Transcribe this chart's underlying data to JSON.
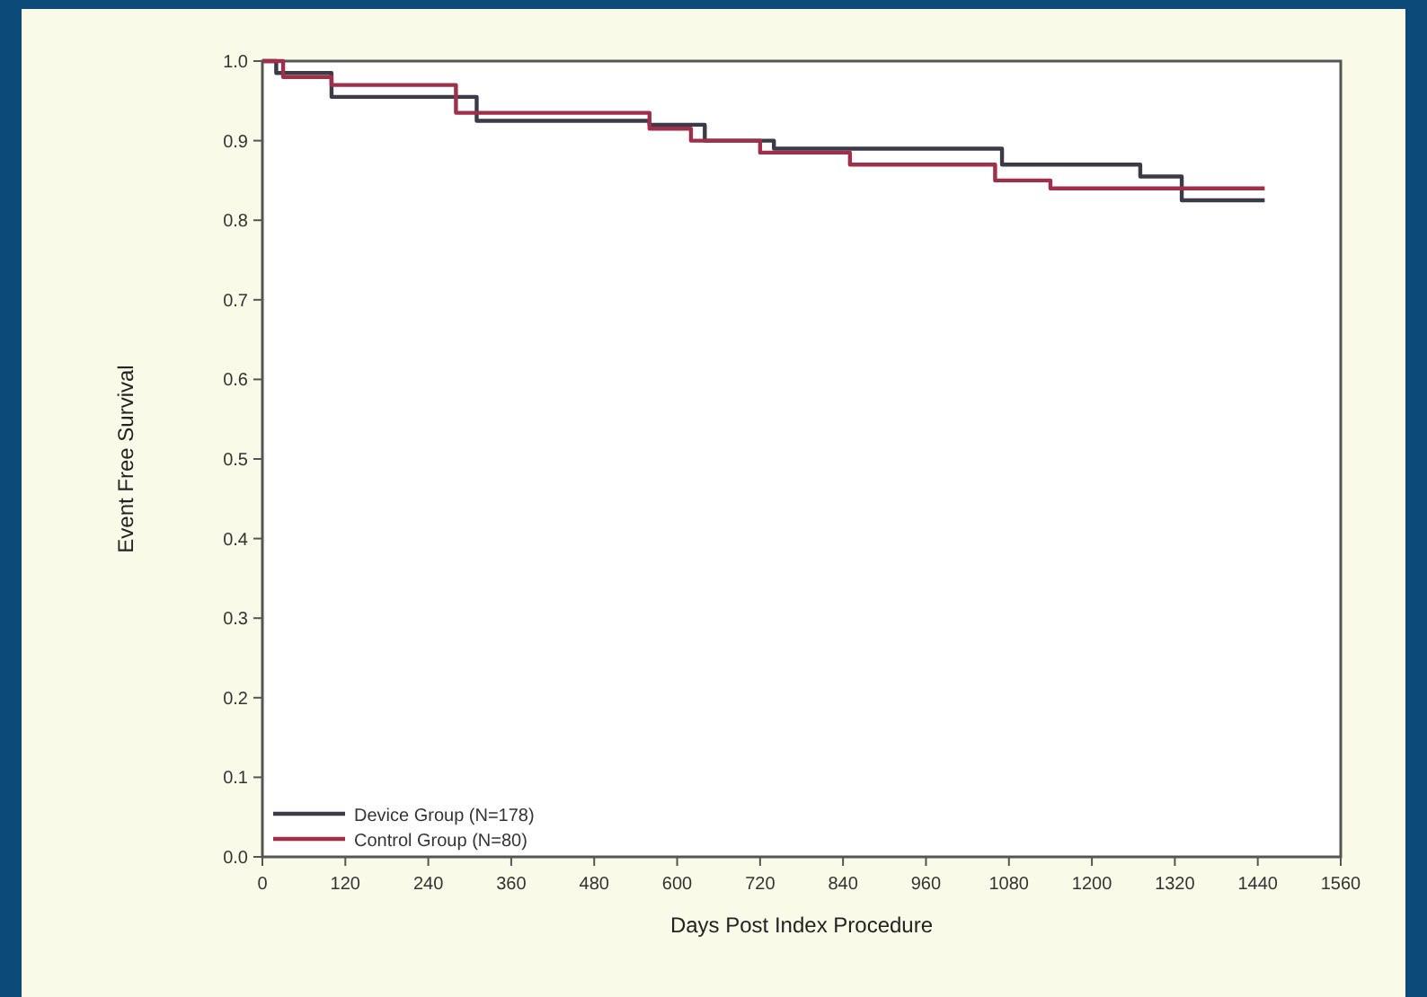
{
  "chart_data": {
    "type": "step",
    "xlabel": "Days Post Index Procedure",
    "ylabel": "Event Free Survival",
    "xlim": [
      0,
      1560
    ],
    "xticks": [
      0,
      120,
      240,
      360,
      480,
      600,
      720,
      840,
      960,
      1080,
      1200,
      1320,
      1440,
      1560
    ],
    "ylim": [
      0,
      1.0
    ],
    "yticks": [
      {
        "value": 0,
        "label": "0.0"
      },
      0.1,
      0.2,
      0.3,
      0.4,
      0.5,
      0.6,
      0.7,
      0.8,
      0.9,
      {
        "value": 1,
        "label": "1.0"
      }
    ],
    "grid": false,
    "legend": "bottom left",
    "line_style": "solid",
    "marker": "none",
    "series": [
      {
        "name": "Device Group (N=178)",
        "color": "#3a3a48",
        "x": [
          0,
          20,
          100,
          310,
          560,
          640,
          740,
          1070,
          1270,
          1330,
          1450
        ],
        "values": [
          1.0,
          0.985,
          0.955,
          0.925,
          0.92,
          0.9,
          0.89,
          0.87,
          0.855,
          0.825,
          0.825
        ]
      },
      {
        "name": "Control Group (N=80)",
        "color": "#a0304a",
        "x": [
          0,
          30,
          100,
          280,
          560,
          620,
          720,
          850,
          1060,
          1140,
          1450
        ],
        "values": [
          1.0,
          0.98,
          0.97,
          0.935,
          0.915,
          0.9,
          0.885,
          0.87,
          0.85,
          0.84,
          0.84
        ]
      }
    ]
  }
}
